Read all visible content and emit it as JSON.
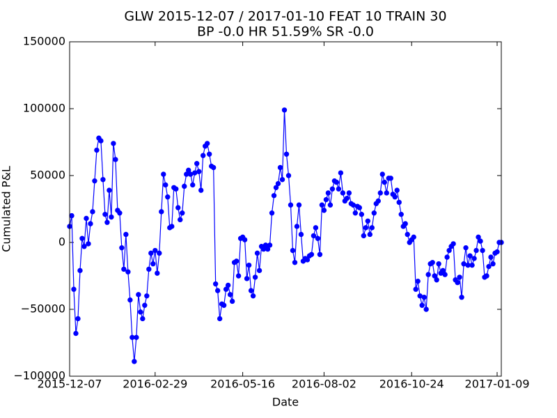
{
  "chart_data": {
    "type": "line",
    "title": "GLW 2015-12-07 / 2017-01-10 FEAT 10 TRAIN 30",
    "subtitle": "BP -0.0 HR 51.59%  SR -0.0",
    "x_label": "Date",
    "y_label": "Cumulated P&L",
    "categories": [
      "2015-12-07",
      null,
      null,
      null,
      null,
      null,
      null,
      null,
      null,
      null,
      null,
      null,
      null,
      null,
      null,
      null,
      null,
      null,
      null,
      null,
      null,
      null,
      null,
      null,
      null,
      null,
      null,
      null,
      null,
      null,
      null,
      null,
      null,
      null,
      null,
      null,
      null,
      null,
      null,
      null,
      null,
      "2016-02-29",
      null,
      null,
      null,
      null,
      null,
      null,
      null,
      null,
      null,
      null,
      null,
      null,
      null,
      null,
      null,
      null,
      null,
      null,
      null,
      null,
      null,
      null,
      null,
      null,
      null,
      null,
      null,
      null,
      null,
      null,
      null,
      null,
      null,
      null,
      null,
      null,
      null,
      null,
      null,
      null,
      null,
      "2016-05-16",
      null,
      null,
      null,
      null,
      null,
      null,
      null,
      null,
      null,
      null,
      null,
      null,
      null,
      null,
      null,
      null,
      null,
      null,
      null,
      null,
      null,
      null,
      null,
      null,
      null,
      null,
      null,
      null,
      null,
      null,
      null,
      null,
      null,
      null,
      null,
      null,
      null,
      null,
      "2016-08-02",
      null,
      null,
      null,
      null,
      null,
      null,
      null,
      null,
      null,
      null,
      null,
      null,
      null,
      null,
      null,
      null,
      null,
      null,
      null,
      null,
      null,
      null,
      null,
      null,
      null,
      null,
      null,
      null,
      null,
      null,
      null,
      null,
      null,
      null,
      null,
      null,
      null,
      null,
      null,
      null,
      null,
      "2016-10-24",
      null,
      null,
      null,
      null,
      null,
      null,
      null,
      null,
      null,
      null,
      null,
      null,
      null,
      null,
      null,
      null,
      null,
      null,
      null,
      null,
      null,
      null,
      null,
      null,
      null,
      null,
      null,
      null,
      null,
      null,
      null,
      null,
      null,
      null,
      null,
      null,
      null,
      null,
      null,
      null,
      "2017-01-09",
      null,
      null
    ],
    "series": [
      {
        "color": "#0000ff",
        "values": [
          12000,
          20000,
          -35000,
          -68000,
          -57000,
          -21000,
          3000,
          -3000,
          18000,
          -1000,
          14000,
          23000,
          46000,
          69000,
          78000,
          76000,
          47000,
          21000,
          15000,
          39000,
          19000,
          74000,
          62000,
          24000,
          22000,
          -4000,
          -20000,
          6000,
          -22000,
          -43000,
          -71000,
          -89000,
          -71000,
          -39000,
          -52000,
          -57000,
          -47000,
          -40000,
          -20000,
          -8000,
          -16000,
          -6000,
          -23000,
          -8000,
          23000,
          51000,
          43000,
          34000,
          11000,
          12000,
          41000,
          40000,
          26000,
          17000,
          22000,
          42000,
          51000,
          54000,
          51000,
          43000,
          52000,
          59000,
          53000,
          39000,
          65000,
          72000,
          74000,
          66000,
          57000,
          56000,
          -31000,
          -36000,
          -57000,
          -46000,
          -47000,
          -35000,
          -32000,
          -39000,
          -44000,
          -15000,
          -14000,
          -25000,
          3000,
          4000,
          2000,
          -27000,
          -17000,
          -36000,
          -40000,
          -26000,
          -8000,
          -21000,
          -3000,
          -5000,
          -2000,
          -5000,
          -2000,
          22000,
          35000,
          41000,
          44000,
          56000,
          47000,
          99000,
          66000,
          50000,
          28000,
          -6000,
          -15000,
          12000,
          28000,
          6000,
          -14000,
          -12000,
          -13000,
          -10000,
          -9000,
          5000,
          11000,
          3000,
          -9000,
          28000,
          24000,
          32000,
          37000,
          28000,
          40000,
          46000,
          45000,
          40000,
          52000,
          37000,
          31000,
          33000,
          37000,
          29000,
          28000,
          22000,
          27000,
          26000,
          21000,
          5000,
          11000,
          16000,
          6000,
          11000,
          22000,
          29000,
          31000,
          37000,
          51000,
          45000,
          37000,
          48000,
          48000,
          36000,
          34000,
          39000,
          30000,
          21000,
          12000,
          14000,
          6000,
          0,
          2000,
          4000,
          -35000,
          -29000,
          -40000,
          -47000,
          -41000,
          -50000,
          -24000,
          -16000,
          -15000,
          -25000,
          -28000,
          -16000,
          -23000,
          -21000,
          -24000,
          -11000,
          -6000,
          -3000,
          -1000,
          -28000,
          -30000,
          -26000,
          -41000,
          -16000,
          -4000,
          -17000,
          -10000,
          -17000,
          -12000,
          -6000,
          4000,
          1000,
          -6000,
          -26000,
          -25000,
          -18000,
          -11000,
          -16000,
          -8000,
          -7000,
          0,
          0
        ]
      }
    ],
    "ylim": [
      -100000,
      150000
    ],
    "yticks": [
      {
        "value": -100000,
        "label": "−100000"
      },
      {
        "value": -50000,
        "label": "−50000"
      },
      0,
      50000,
      100000,
      150000
    ],
    "grid": false
  }
}
